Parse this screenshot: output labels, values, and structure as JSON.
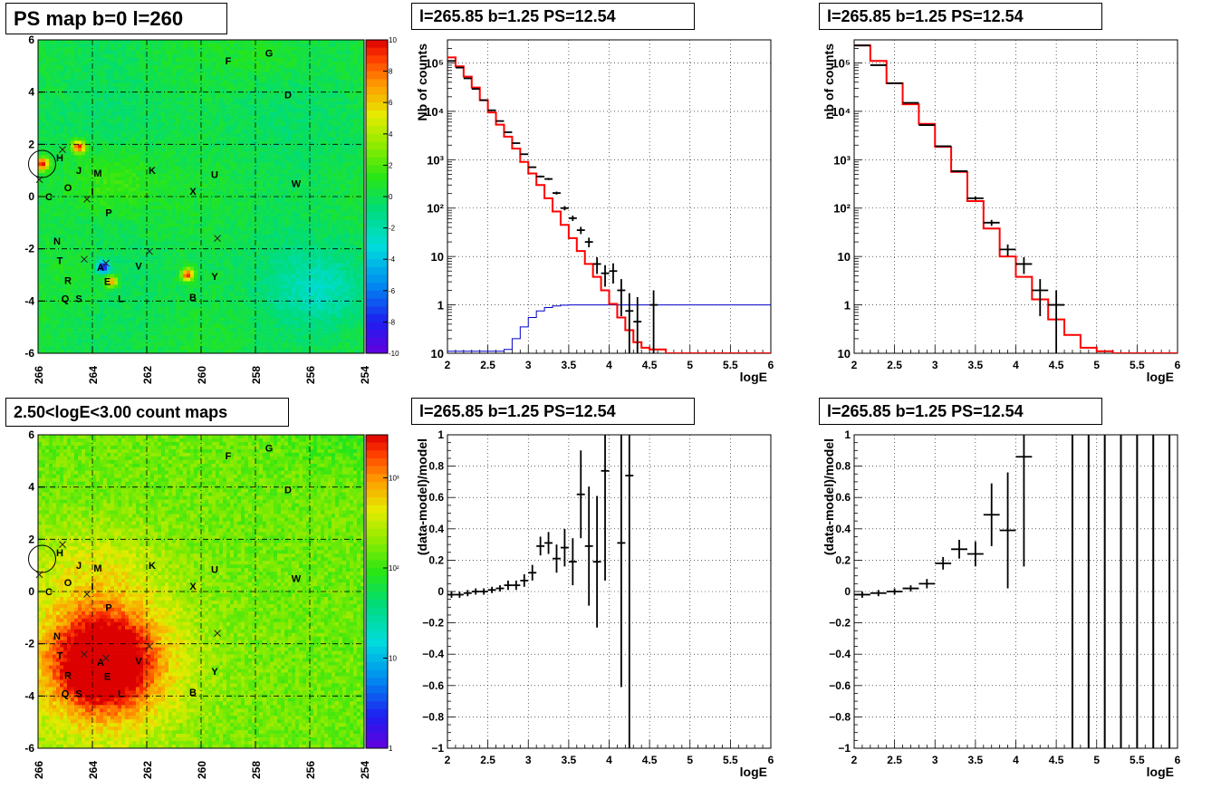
{
  "titles": {
    "map_top": "PS map b=0 l=260",
    "spec_top_mid": "l=265.85 b=1.25 PS=12.54",
    "spec_top_right": "l=265.85 b=1.25 PS=12.54",
    "map_bottom": "2.50<logE<3.00 count maps",
    "res_bottom_mid": "l=265.85 b=1.25 PS=12.54",
    "res_bottom_right": "l=265.85 b=1.25 PS=12.54"
  },
  "chart_data": [
    {
      "type": "heatmap",
      "id": "ps_map",
      "title": "PS map b=0 l=260",
      "xlim": [
        266,
        254
      ],
      "ylim": [
        -6,
        6
      ],
      "x_ticks": [
        "266",
        "264",
        "262",
        "260",
        "258",
        "256",
        "254"
      ],
      "y_ticks": [
        "-6",
        "-4",
        "-2",
        "0",
        "2",
        "4",
        "6"
      ],
      "colorbar": {
        "min": -10,
        "max": 10,
        "ticks": [
          "10",
          "8",
          "6",
          "4",
          "2",
          "0",
          "-2",
          "-4",
          "-6",
          "-8",
          "-10"
        ]
      },
      "hotspots": [
        {
          "l": 265.85,
          "b": 1.25,
          "value": 10
        },
        {
          "l": 264.5,
          "b": 1.9,
          "value": 10
        },
        {
          "l": 260.5,
          "b": -3.0,
          "value": 10
        },
        {
          "l": 263.3,
          "b": -3.25,
          "value": 7
        },
        {
          "l": 263.6,
          "b": -2.7,
          "value": -9
        }
      ],
      "source_labels": [
        {
          "t": "F",
          "l": 259,
          "b": 5.2
        },
        {
          "t": "G",
          "l": 257.5,
          "b": 5.5
        },
        {
          "t": "D",
          "l": 256.8,
          "b": 3.9
        },
        {
          "t": "H",
          "l": 265.2,
          "b": 1.5
        },
        {
          "t": "J",
          "l": 264.5,
          "b": 1.0
        },
        {
          "t": "M",
          "l": 263.8,
          "b": 0.9
        },
        {
          "t": "K",
          "l": 261.8,
          "b": 1.0
        },
        {
          "t": "U",
          "l": 259.5,
          "b": 0.85
        },
        {
          "t": "W",
          "l": 256.5,
          "b": 0.5
        },
        {
          "t": "O",
          "l": 264.9,
          "b": 0.35
        },
        {
          "t": "I",
          "l": 264.0,
          "b": 0.2
        },
        {
          "t": "X",
          "l": 260.3,
          "b": 0.2
        },
        {
          "t": "C",
          "l": 265.6,
          "b": 0.0
        },
        {
          "t": "P",
          "l": 263.4,
          "b": -0.6
        },
        {
          "t": "N",
          "l": 265.3,
          "b": -1.7
        },
        {
          "t": "T",
          "l": 265.2,
          "b": -2.45
        },
        {
          "t": "V",
          "l": 262.3,
          "b": -2.65
        },
        {
          "t": "R",
          "l": 264.9,
          "b": -3.2
        },
        {
          "t": "A",
          "l": 263.7,
          "b": -2.7
        },
        {
          "t": "E",
          "l": 263.45,
          "b": -3.25
        },
        {
          "t": "Y",
          "l": 259.5,
          "b": -3.05
        },
        {
          "t": "Q",
          "l": 265.0,
          "b": -3.9
        },
        {
          "t": "S",
          "l": 264.5,
          "b": -3.9
        },
        {
          "t": "L",
          "l": 262.95,
          "b": -3.9
        },
        {
          "t": "B",
          "l": 260.3,
          "b": -3.85
        }
      ],
      "crosses": [
        {
          "l": 265.1,
          "b": 1.8
        },
        {
          "l": 265.95,
          "b": 0.65
        },
        {
          "l": 264.2,
          "b": -0.1
        },
        {
          "l": 264.3,
          "b": -2.4
        },
        {
          "l": 261.9,
          "b": -2.1
        },
        {
          "l": 259.4,
          "b": -1.6
        },
        {
          "l": 263.5,
          "b": -2.55
        }
      ],
      "circle": {
        "l": 265.85,
        "b": 1.25
      }
    },
    {
      "type": "line",
      "id": "spec_mid",
      "title": "l=265.85 b=1.25 PS=12.54",
      "xlabel": "logE",
      "ylabel": "Nb of counts",
      "xlim": [
        2,
        6
      ],
      "ylim": [
        0.1,
        300000
      ],
      "yscale": "log",
      "grid": true,
      "x_ticks": [
        "2",
        "2.5",
        "3",
        "3.5",
        "4",
        "4.5",
        "5",
        "5.5",
        "6"
      ],
      "y_ticks": [
        "10",
        "1",
        "10",
        "10²",
        "10³",
        "10⁴",
        "10⁵"
      ],
      "data_points": [
        [
          2.05,
          110000
        ],
        [
          2.15,
          80000
        ],
        [
          2.25,
          48000
        ],
        [
          2.35,
          29000
        ],
        [
          2.45,
          17000
        ],
        [
          2.55,
          10500
        ],
        [
          2.65,
          6300
        ],
        [
          2.75,
          3700
        ],
        [
          2.85,
          2200
        ],
        [
          2.95,
          1300
        ],
        [
          3.05,
          700
        ],
        [
          3.15,
          450
        ],
        [
          3.25,
          400
        ],
        [
          3.35,
          205
        ],
        [
          3.45,
          100
        ],
        [
          3.55,
          62
        ],
        [
          3.65,
          35
        ],
        [
          3.75,
          20
        ],
        [
          3.85,
          7
        ],
        [
          3.95,
          4.5
        ],
        [
          4.05,
          5
        ],
        [
          4.15,
          2
        ],
        [
          4.25,
          0.75
        ],
        [
          4.35,
          0.45
        ],
        [
          4.55,
          1
        ]
      ],
      "model_red_edges": [
        2.0,
        2.1,
        2.2,
        2.3,
        2.4,
        2.5,
        2.6,
        2.7,
        2.8,
        2.9,
        3.0,
        3.1,
        3.2,
        3.3,
        3.4,
        3.5,
        3.6,
        3.7,
        3.8,
        3.9,
        4.0,
        4.1,
        4.2,
        4.3,
        4.4,
        4.5,
        4.6,
        4.7,
        6.0
      ],
      "model_red_values": [
        130000,
        85000,
        52000,
        31000,
        17000,
        9500,
        5300,
        3000,
        1700,
        900,
        520,
        300,
        160,
        85,
        45,
        24,
        13,
        7,
        3.8,
        2.0,
        1.05,
        0.55,
        0.3,
        0.17,
        0.13,
        0.12,
        0.12,
        0.1
      ],
      "model_blue_edges": [
        2.0,
        2.7,
        2.8,
        2.9,
        3.0,
        3.1,
        3.2,
        3.3,
        3.4,
        3.5,
        6.0
      ],
      "model_blue_values": [
        0.11,
        0.12,
        0.2,
        0.35,
        0.55,
        0.75,
        0.88,
        0.95,
        0.99,
        1.0
      ]
    },
    {
      "type": "line",
      "id": "spec_right",
      "title": "l=265.85 b=1.25 PS=12.54",
      "xlabel": "logE",
      "ylabel": "nb of counts",
      "xlim": [
        2,
        6
      ],
      "ylim": [
        0.1,
        300000
      ],
      "yscale": "log",
      "grid": true,
      "x_ticks": [
        "2",
        "2.5",
        "3",
        "3.5",
        "4",
        "4.5",
        "5",
        "5.5",
        "6"
      ],
      "y_ticks": [
        "10",
        "1",
        "10",
        "10²",
        "10³",
        "10⁴",
        "10⁵"
      ],
      "data_points": [
        [
          2.1,
          230000
        ],
        [
          2.3,
          90000
        ],
        [
          2.5,
          38000
        ],
        [
          2.7,
          15000
        ],
        [
          2.9,
          5200
        ],
        [
          3.1,
          1900
        ],
        [
          3.3,
          580
        ],
        [
          3.5,
          160
        ],
        [
          3.7,
          50
        ],
        [
          3.9,
          14
        ],
        [
          4.1,
          7
        ],
        [
          4.3,
          2
        ],
        [
          4.5,
          1
        ]
      ],
      "model_red_edges": [
        2.0,
        2.2,
        2.4,
        2.6,
        2.8,
        3.0,
        3.2,
        3.4,
        3.6,
        3.8,
        4.0,
        4.2,
        4.4,
        4.6,
        4.8,
        5.0,
        5.2,
        6.0
      ],
      "model_red_values": [
        230000,
        110000,
        38000,
        14000,
        5500,
        1850,
        560,
        140,
        38,
        10,
        3.8,
        1.3,
        0.5,
        0.24,
        0.13,
        0.11,
        0.1
      ]
    },
    {
      "type": "heatmap",
      "id": "count_map",
      "title": "2.50<logE<3.00 count maps",
      "xlim": [
        266,
        254
      ],
      "ylim": [
        -6,
        6
      ],
      "x_ticks": [
        "266",
        "264",
        "262",
        "260",
        "258",
        "256",
        "254"
      ],
      "y_ticks": [
        "-6",
        "-4",
        "-2",
        "0",
        "2",
        "4",
        "6"
      ],
      "colorbar": {
        "scale": "log",
        "min": 1,
        "max": 3000,
        "ticks": [
          "1",
          "10",
          "10²",
          "10³"
        ]
      },
      "peak": {
        "l": 263.6,
        "b": -2.7
      }
    },
    {
      "type": "scatter",
      "id": "res_mid",
      "title": "l=265.85 b=1.25 PS=12.54",
      "xlabel": "logE",
      "ylabel": "(data-model)/model",
      "xlim": [
        2,
        6
      ],
      "ylim": [
        -1,
        1
      ],
      "grid": true,
      "x_ticks": [
        "2",
        "2.5",
        "3",
        "3.5",
        "4",
        "4.5",
        "5",
        "5.5",
        "6"
      ],
      "y_ticks": [
        "−1",
        "−0.8",
        "−0.6",
        "−0.4",
        "−0.2",
        "0",
        "0.2",
        "0.4",
        "0.6",
        "0.8",
        "1"
      ],
      "points": [
        [
          2.05,
          -0.02,
          0.02
        ],
        [
          2.15,
          -0.02,
          0.02
        ],
        [
          2.25,
          -0.01,
          0.02
        ],
        [
          2.35,
          0.0,
          0.02
        ],
        [
          2.45,
          0.0,
          0.02
        ],
        [
          2.55,
          0.01,
          0.02
        ],
        [
          2.65,
          0.02,
          0.02
        ],
        [
          2.75,
          0.04,
          0.03
        ],
        [
          2.85,
          0.04,
          0.03
        ],
        [
          2.95,
          0.07,
          0.04
        ],
        [
          3.05,
          0.12,
          0.05
        ],
        [
          3.15,
          0.29,
          0.06
        ],
        [
          3.25,
          0.31,
          0.07
        ],
        [
          3.35,
          0.21,
          0.09
        ],
        [
          3.45,
          0.28,
          0.12
        ],
        [
          3.55,
          0.19,
          0.15
        ],
        [
          3.65,
          0.62,
          0.28
        ],
        [
          3.75,
          0.29,
          0.38
        ],
        [
          3.85,
          0.19,
          0.42
        ],
        [
          3.95,
          0.77,
          0.7
        ],
        [
          4.15,
          0.31,
          0.92
        ],
        [
          4.25,
          0.74,
          1.8
        ]
      ]
    },
    {
      "type": "scatter",
      "id": "res_right",
      "title": "l=265.85 b=1.25 PS=12.54",
      "xlabel": "logE",
      "ylabel": "(data-model)/model",
      "xlim": [
        2,
        6
      ],
      "ylim": [
        -1,
        1
      ],
      "grid": true,
      "x_ticks": [
        "2",
        "2.5",
        "3",
        "3.5",
        "4",
        "4.5",
        "5",
        "5.5",
        "6"
      ],
      "y_ticks": [
        "−1",
        "−0.8",
        "−0.6",
        "−0.4",
        "−0.2",
        "0",
        "0.2",
        "0.4",
        "0.6",
        "0.8",
        "1"
      ],
      "points": [
        [
          2.1,
          -0.02,
          0.02
        ],
        [
          2.3,
          -0.01,
          0.02
        ],
        [
          2.5,
          0.0,
          0.02
        ],
        [
          2.7,
          0.02,
          0.02
        ],
        [
          2.9,
          0.05,
          0.03
        ],
        [
          3.1,
          0.18,
          0.04
        ],
        [
          3.3,
          0.27,
          0.06
        ],
        [
          3.5,
          0.24,
          0.08
        ],
        [
          3.7,
          0.49,
          0.2
        ],
        [
          3.9,
          0.39,
          0.37
        ],
        [
          4.1,
          0.86,
          0.7
        ]
      ],
      "full_bars_x": [
        4.7,
        4.9,
        5.1,
        5.3,
        5.5,
        5.7,
        5.9
      ]
    }
  ]
}
